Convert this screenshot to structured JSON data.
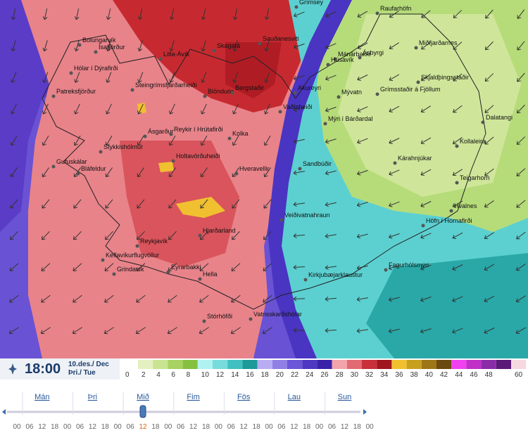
{
  "map": {
    "places": [
      "Grímsey",
      "Raufarhöfn",
      "Bolungarvík",
      "Ísafjörður",
      "Litla-Ávík",
      "Skagatá",
      "Sauðanesviti",
      "Mánárbakki",
      "Miðfjarðarnes",
      "Ásbyrgi",
      "Húsavík",
      "Hólar í Dýrafirði",
      "Patreksfjörður",
      "Steingrímsfjarðarheiði",
      "Blönduós",
      "Bergstaðir",
      "Akureyri",
      "Mývatn",
      "Grímsstaðir á Fjöllum",
      "Skjaldþingsstaðir",
      "Vaðlaheiði",
      "Mýri í Bárðardal",
      "Dalatangi",
      "Ásgarður",
      "Reykir í Hrútafirði",
      "Kolka",
      "Gufuskálar",
      "Stykkishólmur",
      "Bláfeldur",
      "Holtavörðuheiði",
      "Hveravellir",
      "Sandbúðir",
      "Kárahnjúkar",
      "Kollaleira",
      "Teigarhorn",
      "Hvalnes",
      "Höfn í Hornafirði",
      "Veiðivatnahraun",
      "Hjarðarland",
      "Reykjavík",
      "Keflavíkurflugvöllur",
      "Grindavík",
      "Eyrarbakki",
      "Hella",
      "Fagurhólsmýri",
      "Kirkjubæjarklaustur",
      "Stórhöfði",
      "Vatnsskarðshólar"
    ]
  },
  "legend": {
    "labels": [
      0,
      2,
      4,
      6,
      8,
      10,
      12,
      14,
      16,
      18,
      20,
      22,
      24,
      26,
      28,
      30,
      32,
      34,
      36,
      38,
      40,
      42,
      44,
      46,
      48,
      60
    ],
    "colors": [
      "#e4f0c0",
      "#c8e490",
      "#a8d262",
      "#86c040",
      "#b0f2f2",
      "#78dcdc",
      "#40c0c0",
      "#1c9a9a",
      "#b8acf2",
      "#9080e6",
      "#6c56d8",
      "#4e38c2",
      "#3a22a8",
      "#f2a4aa",
      "#e26a72",
      "#c8303a",
      "#a0161e",
      "#f0c030",
      "#c8a020",
      "#9e7618",
      "#6a4a10",
      "#f040f0",
      "#c030c8",
      "#8a2ca8",
      "#5a1a78",
      "#f6d8e0"
    ]
  },
  "time": {
    "clock": "18:00",
    "date": "10.des./ Dec",
    "weekday": "Þri./ Tue"
  },
  "timeline": {
    "days": [
      "Mán",
      "Þri",
      "Mið",
      "Fim",
      "Fös",
      "Lau",
      "Sun"
    ],
    "hours": [
      "00",
      "06",
      "12",
      "18",
      "00",
      "06",
      "12",
      "18",
      "00",
      "06",
      "12",
      "18",
      "00",
      "06",
      "12",
      "18",
      "00",
      "06",
      "12",
      "18",
      "00",
      "06",
      "12",
      "18",
      "00",
      "06",
      "12",
      "18",
      "00"
    ],
    "selected": 10
  }
}
